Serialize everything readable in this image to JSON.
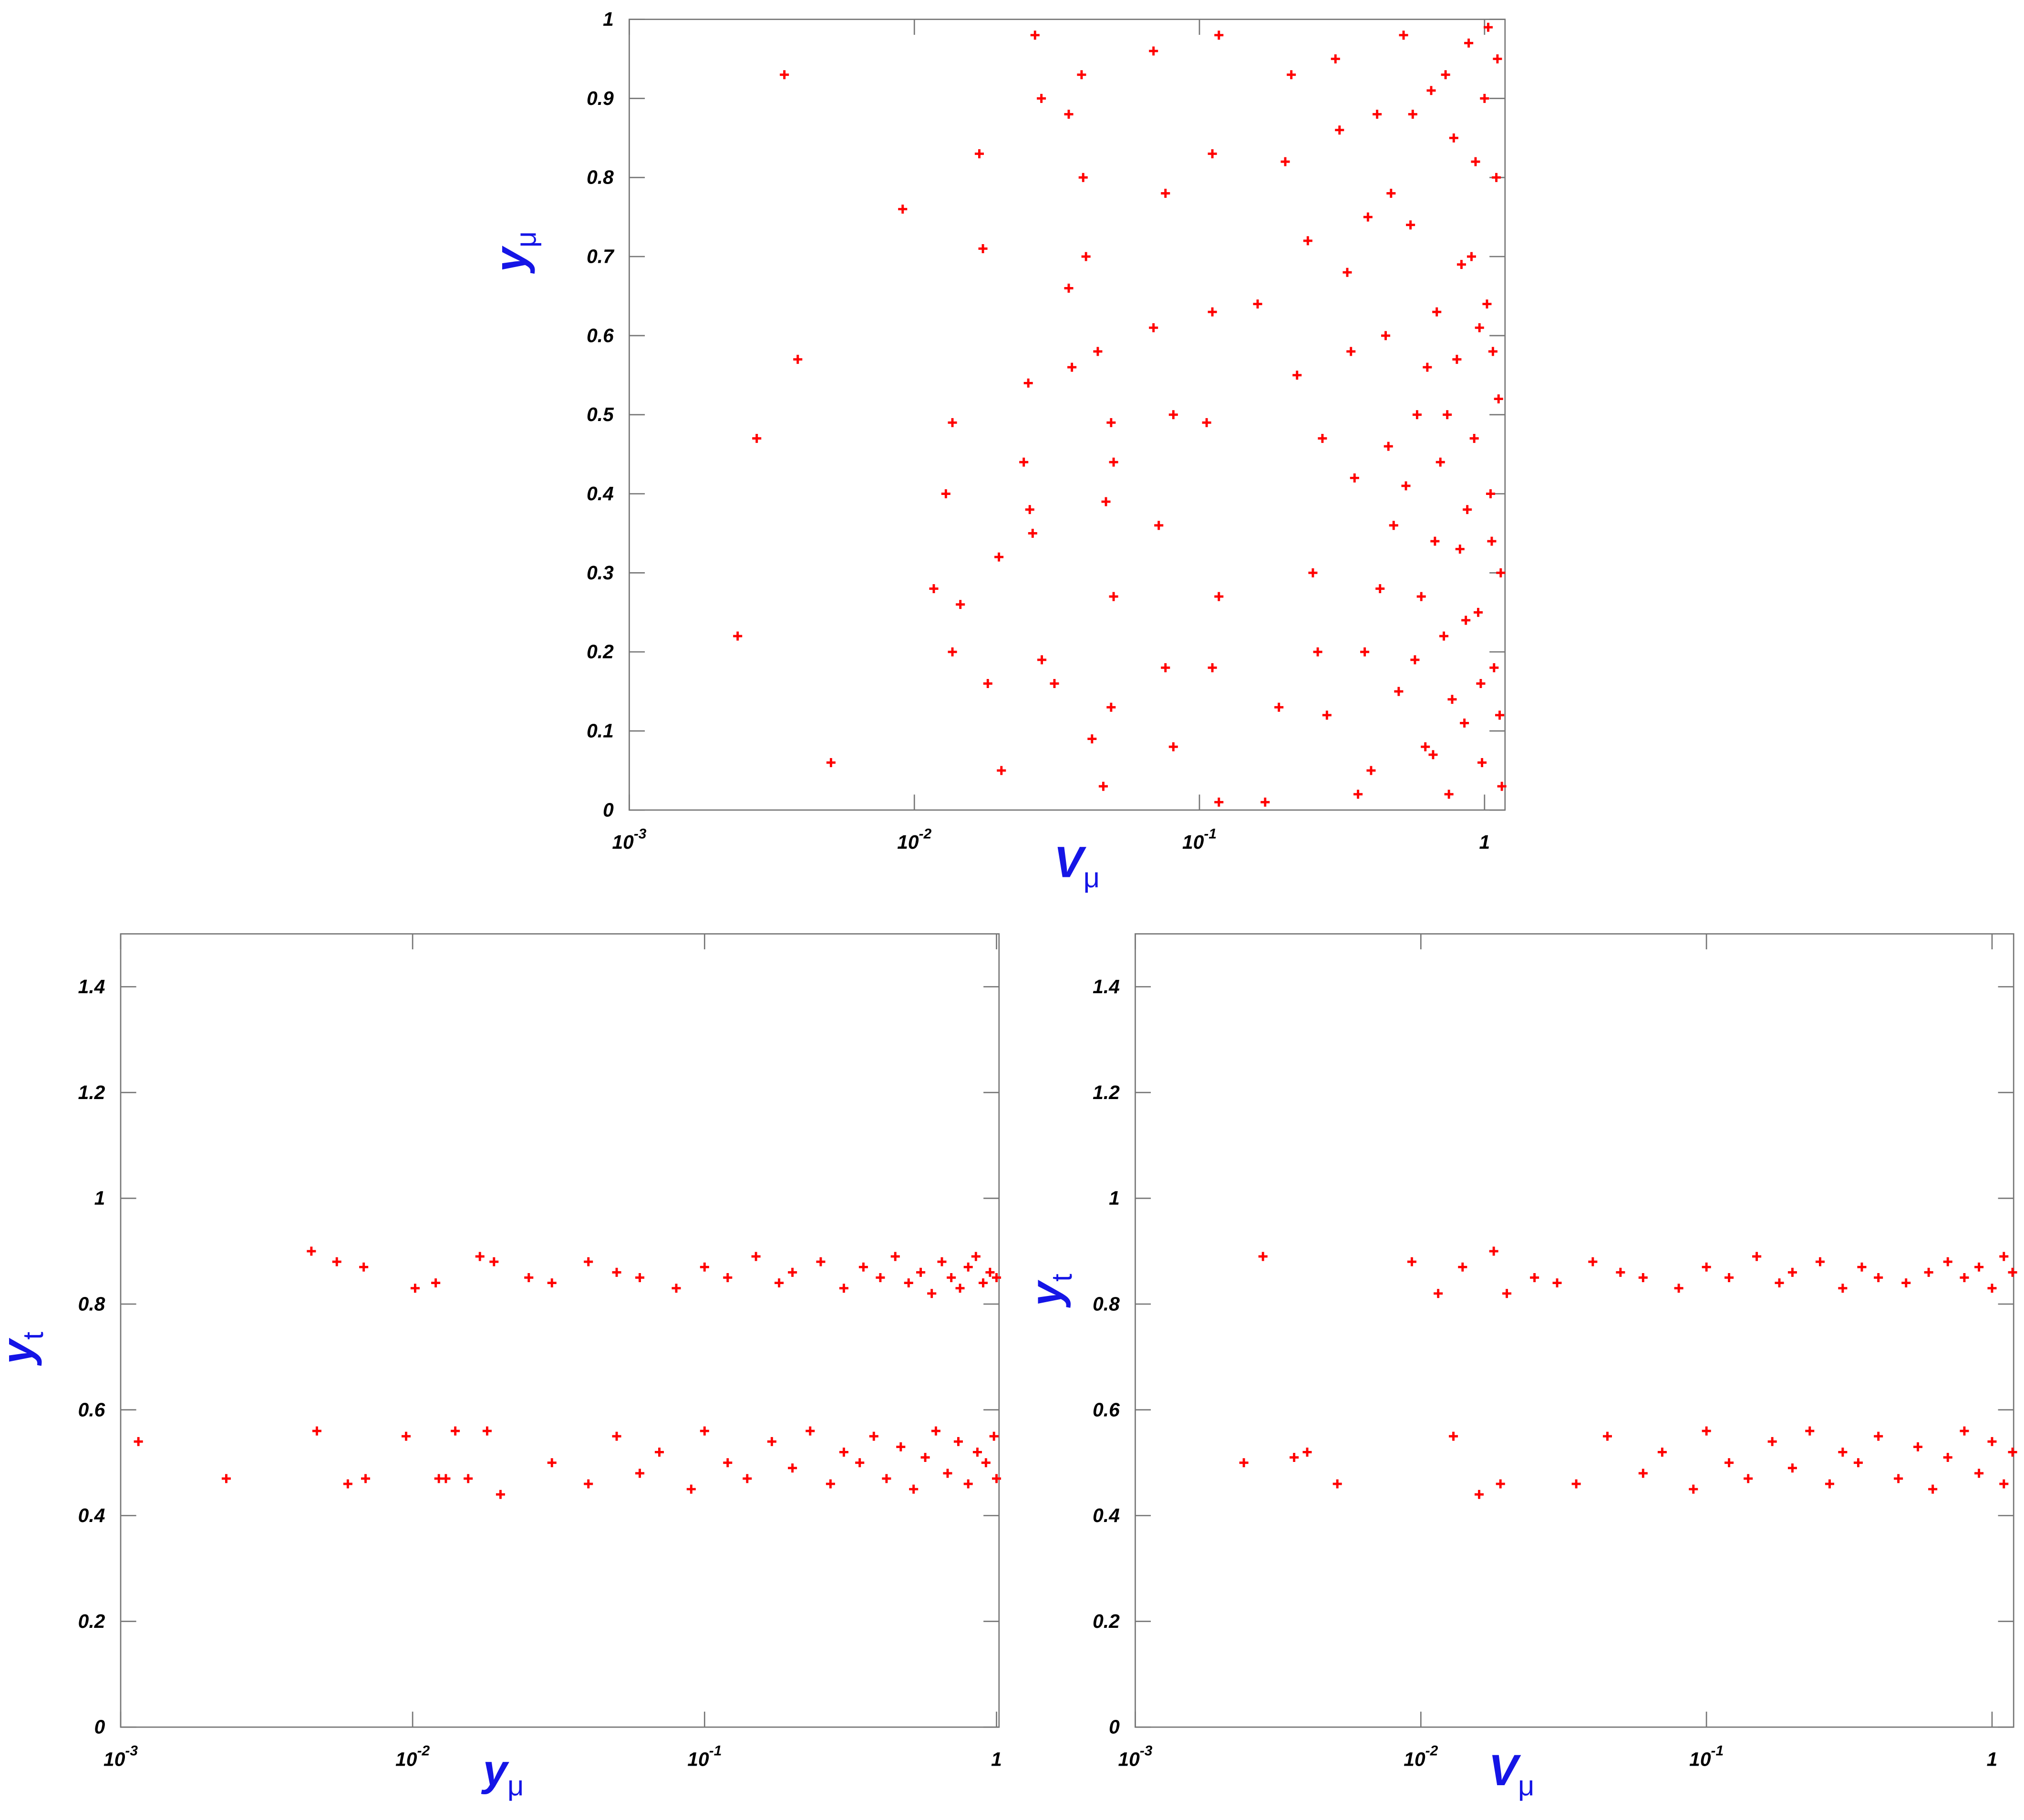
{
  "chart_data": [
    {
      "type": "scatter",
      "xscale": "log",
      "color": "#ff0000",
      "xlabel": {
        "text": "V",
        "subscript": "μ"
      },
      "ylabel": {
        "text": "y",
        "subscript": "μ"
      },
      "xlim": [
        0.001,
        1.18
      ],
      "ylim": [
        0,
        1
      ],
      "xticks": [
        {
          "value": 0.001,
          "label": "10",
          "superscript": "-3"
        },
        {
          "value": 0.01,
          "label": "10",
          "superscript": "-2"
        },
        {
          "value": 0.1,
          "label": "10",
          "superscript": "-1"
        },
        1
      ],
      "yticks": [
        0,
        0.1,
        0.2,
        0.3,
        0.4,
        0.5,
        0.6,
        0.7,
        0.8,
        0.9,
        1
      ],
      "x": [
        0.0035,
        0.0024,
        0.0028,
        0.0039,
        0.0051,
        0.0091,
        0.0169,
        0.0174,
        0.0136,
        0.0129,
        0.0117,
        0.0145,
        0.0136,
        0.0181,
        0.0202,
        0.0198,
        0.0265,
        0.0279,
        0.0386,
        0.0348,
        0.0391,
        0.04,
        0.0348,
        0.0357,
        0.0251,
        0.0242,
        0.0254,
        0.026,
        0.028,
        0.031,
        0.044,
        0.049,
        0.05,
        0.047,
        0.05,
        0.049,
        0.042,
        0.046,
        0.069,
        0.076,
        0.069,
        0.081,
        0.072,
        0.076,
        0.081,
        0.117,
        0.111,
        0.111,
        0.106,
        0.117,
        0.111,
        0.117,
        0.2,
        0.22,
        0.25,
        0.28,
        0.3,
        0.33,
        0.35,
        0.38,
        0.4,
        0.42,
        0.45,
        0.48,
        0.5,
        0.52,
        0.55,
        0.58,
        0.6,
        0.62,
        0.65,
        0.68,
        0.7,
        0.72,
        0.75,
        0.78,
        0.8,
        0.82,
        0.85,
        0.88,
        0.9,
        0.92,
        0.95,
        0.98,
        1.0,
        1.02,
        1.05,
        1.08,
        1.1,
        1.12,
        1.14,
        1.15,
        0.19,
        0.24,
        0.27,
        0.31,
        0.36,
        0.43,
        0.47,
        0.53,
        0.57,
        0.63,
        0.67,
        0.73,
        0.77,
        0.83,
        0.87,
        0.93,
        0.97,
        1.03,
        1.07,
        1.13,
        0.16,
        0.17,
        0.21,
        0.26,
        0.34,
        0.39,
        0.46,
        0.56,
        0.66,
        0.74,
        0.86,
        0.96,
        1.06,
        1.11
      ],
      "y": [
        0.93,
        0.22,
        0.47,
        0.57,
        0.06,
        0.76,
        0.83,
        0.71,
        0.49,
        0.4,
        0.28,
        0.26,
        0.2,
        0.16,
        0.05,
        0.32,
        0.98,
        0.9,
        0.93,
        0.88,
        0.8,
        0.7,
        0.66,
        0.56,
        0.54,
        0.44,
        0.38,
        0.35,
        0.19,
        0.16,
        0.58,
        0.49,
        0.44,
        0.39,
        0.27,
        0.13,
        0.09,
        0.03,
        0.96,
        0.78,
        0.61,
        0.5,
        0.36,
        0.18,
        0.08,
        0.98,
        0.83,
        0.63,
        0.49,
        0.27,
        0.18,
        0.01,
        0.82,
        0.55,
        0.3,
        0.12,
        0.95,
        0.68,
        0.42,
        0.2,
        0.05,
        0.88,
        0.6,
        0.36,
        0.15,
        0.98,
        0.74,
        0.5,
        0.27,
        0.08,
        0.91,
        0.63,
        0.44,
        0.22,
        0.02,
        0.85,
        0.57,
        0.33,
        0.11,
        0.97,
        0.7,
        0.47,
        0.25,
        0.06,
        0.9,
        0.64,
        0.4,
        0.18,
        0.8,
        0.52,
        0.3,
        0.03,
        0.13,
        0.72,
        0.47,
        0.86,
        0.02,
        0.28,
        0.78,
        0.41,
        0.19,
        0.56,
        0.34,
        0.93,
        0.14,
        0.69,
        0.38,
        0.82,
        0.16,
        0.99,
        0.58,
        0.12,
        0.64,
        0.01,
        0.93,
        0.2,
        0.58,
        0.75,
        0.46,
        0.88,
        0.07,
        0.5,
        0.24,
        0.61,
        0.34,
        0.95
      ]
    },
    {
      "type": "scatter",
      "xscale": "log",
      "color": "#ff0000",
      "xlabel": {
        "text": "y",
        "subscript": "μ"
      },
      "ylabel": {
        "text": "y",
        "subscript": "t"
      },
      "xlim": [
        0.001,
        1.02
      ],
      "ylim": [
        0,
        1.5
      ],
      "xticks": [
        {
          "value": 0.001,
          "label": "10",
          "superscript": "-3"
        },
        {
          "value": 0.01,
          "label": "10",
          "superscript": "-2"
        },
        {
          "value": 0.1,
          "label": "10",
          "superscript": "-1"
        },
        1
      ],
      "yticks": [
        0,
        0.2,
        0.4,
        0.6,
        0.8,
        1,
        1.2,
        1.4
      ],
      "x": [
        0.00115,
        0.0023,
        0.0045,
        0.0047,
        0.0055,
        0.006,
        0.0068,
        0.0069,
        0.0095,
        0.0102,
        0.012,
        0.0123,
        0.013,
        0.014,
        0.0155,
        0.017,
        0.018,
        0.019,
        0.02,
        0.025,
        0.03,
        0.04,
        0.05,
        0.06,
        0.08,
        0.1,
        0.12,
        0.15,
        0.18,
        0.2,
        0.25,
        0.3,
        0.35,
        0.4,
        0.45,
        0.5,
        0.55,
        0.6,
        0.65,
        0.7,
        0.75,
        0.8,
        0.85,
        0.9,
        0.95,
        1.0,
        0.03,
        0.04,
        0.05,
        0.06,
        0.07,
        0.09,
        0.1,
        0.12,
        0.14,
        0.17,
        0.2,
        0.23,
        0.27,
        0.3,
        0.34,
        0.38,
        0.42,
        0.47,
        0.52,
        0.57,
        0.62,
        0.68,
        0.74,
        0.8,
        0.86,
        0.92,
        0.98,
        1.0
      ],
      "y": [
        0.54,
        0.47,
        0.9,
        0.56,
        0.88,
        0.46,
        0.87,
        0.47,
        0.55,
        0.83,
        0.84,
        0.47,
        0.47,
        0.56,
        0.47,
        0.89,
        0.56,
        0.88,
        0.44,
        0.85,
        0.84,
        0.88,
        0.86,
        0.85,
        0.83,
        0.87,
        0.85,
        0.89,
        0.84,
        0.86,
        0.88,
        0.83,
        0.87,
        0.85,
        0.89,
        0.84,
        0.86,
        0.82,
        0.88,
        0.85,
        0.83,
        0.87,
        0.89,
        0.84,
        0.86,
        0.85,
        0.5,
        0.46,
        0.55,
        0.48,
        0.52,
        0.45,
        0.56,
        0.5,
        0.47,
        0.54,
        0.49,
        0.56,
        0.46,
        0.52,
        0.5,
        0.55,
        0.47,
        0.53,
        0.45,
        0.51,
        0.56,
        0.48,
        0.54,
        0.46,
        0.52,
        0.5,
        0.55,
        0.47
      ]
    },
    {
      "type": "scatter",
      "xscale": "log",
      "color": "#ff0000",
      "xlabel": {
        "text": "V",
        "subscript": "μ"
      },
      "ylabel": {
        "text": "y",
        "subscript": "t"
      },
      "xlim": [
        0.001,
        1.19
      ],
      "ylim": [
        0,
        1.5
      ],
      "xticks": [
        {
          "value": 0.001,
          "label": "10",
          "superscript": "-3"
        },
        {
          "value": 0.01,
          "label": "10",
          "superscript": "-2"
        },
        {
          "value": 0.1,
          "label": "10",
          "superscript": "-1"
        },
        1
      ],
      "yticks": [
        0,
        0.2,
        0.4,
        0.6,
        0.8,
        1,
        1.2,
        1.4
      ],
      "x": [
        0.0028,
        0.0024,
        0.0036,
        0.004,
        0.0051,
        0.0093,
        0.0115,
        0.013,
        0.014,
        0.016,
        0.018,
        0.019,
        0.02,
        0.025,
        0.03,
        0.04,
        0.05,
        0.06,
        0.08,
        0.1,
        0.12,
        0.15,
        0.18,
        0.2,
        0.25,
        0.3,
        0.35,
        0.4,
        0.5,
        0.6,
        0.7,
        0.8,
        0.9,
        1.0,
        1.1,
        1.18,
        0.035,
        0.045,
        0.06,
        0.07,
        0.09,
        0.1,
        0.12,
        0.14,
        0.17,
        0.2,
        0.23,
        0.27,
        0.3,
        0.34,
        0.4,
        0.47,
        0.55,
        0.62,
        0.7,
        0.8,
        0.9,
        1.0,
        1.1,
        1.18
      ],
      "y": [
        0.89,
        0.5,
        0.51,
        0.52,
        0.46,
        0.88,
        0.82,
        0.55,
        0.87,
        0.44,
        0.9,
        0.46,
        0.82,
        0.85,
        0.84,
        0.88,
        0.86,
        0.85,
        0.83,
        0.87,
        0.85,
        0.89,
        0.84,
        0.86,
        0.88,
        0.83,
        0.87,
        0.85,
        0.84,
        0.86,
        0.88,
        0.85,
        0.87,
        0.83,
        0.89,
        0.86,
        0.46,
        0.55,
        0.48,
        0.52,
        0.45,
        0.56,
        0.5,
        0.47,
        0.54,
        0.49,
        0.56,
        0.46,
        0.52,
        0.5,
        0.55,
        0.47,
        0.53,
        0.45,
        0.51,
        0.56,
        0.48,
        0.54,
        0.46,
        0.52
      ]
    }
  ]
}
